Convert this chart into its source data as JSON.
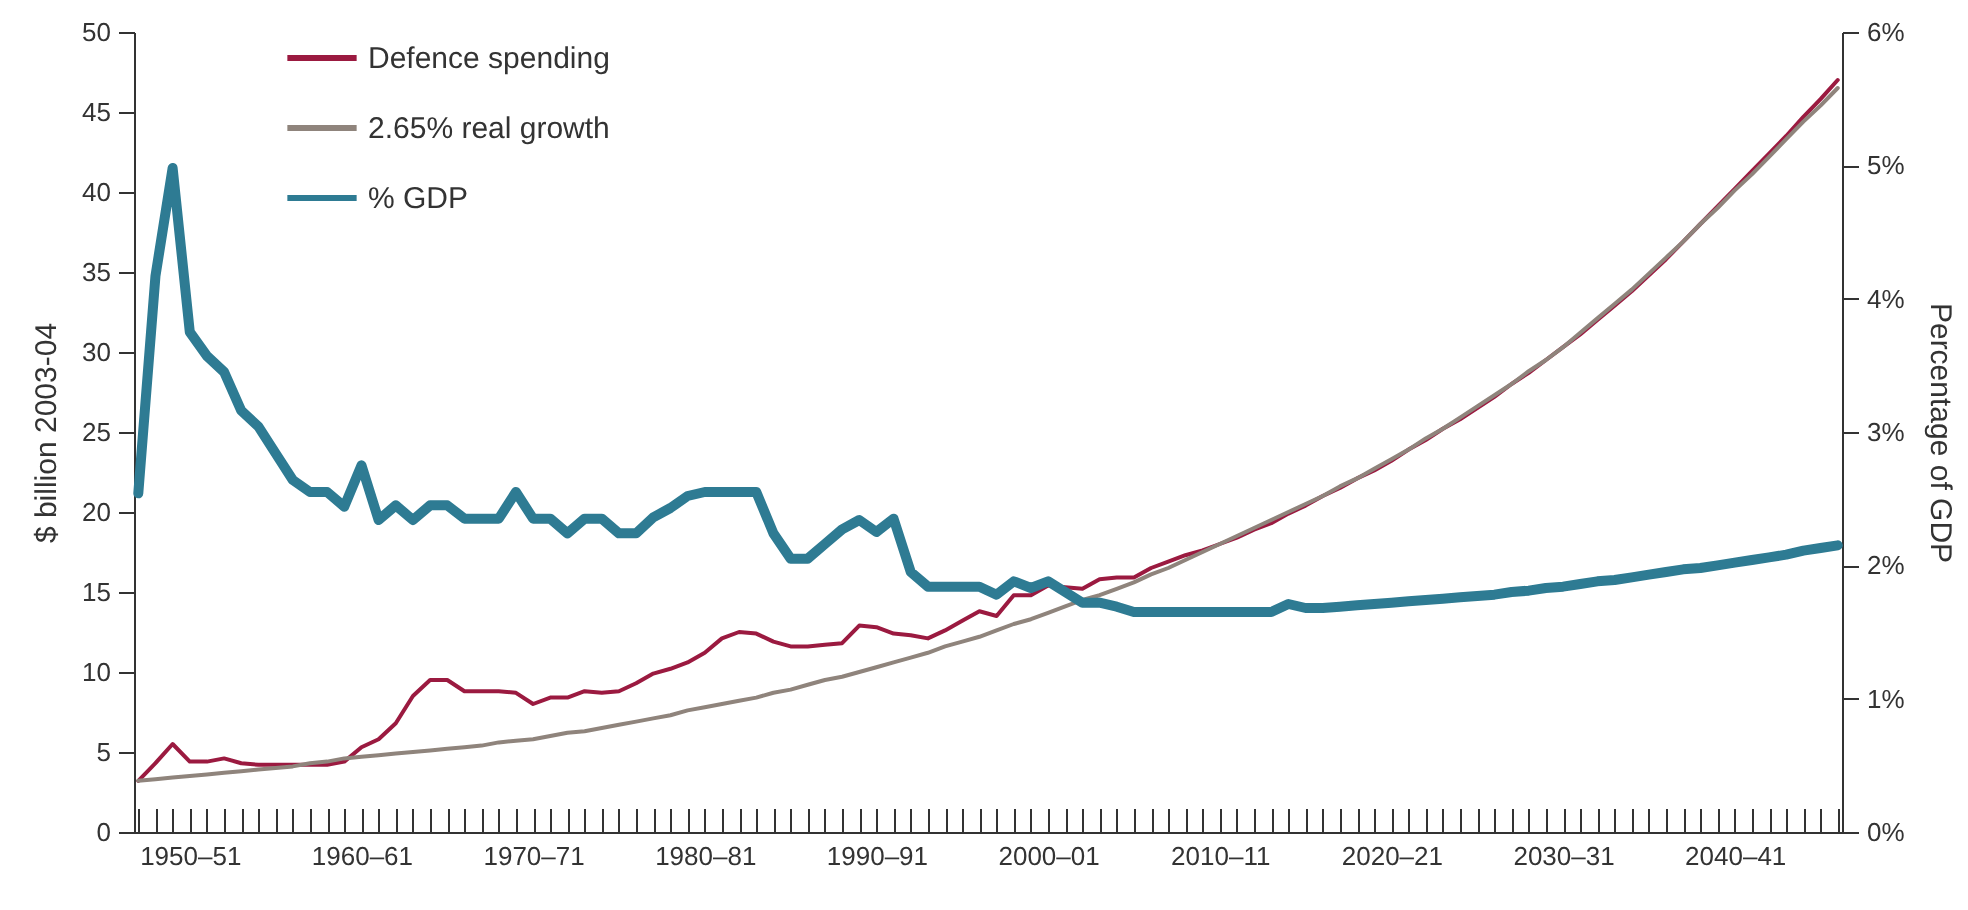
{
  "chart_data": {
    "type": "line",
    "ylabel": "$ billion 2003-04",
    "y2label": "Percentage of GDP",
    "ylim": [
      0,
      50
    ],
    "yticks": [
      0,
      5,
      10,
      15,
      20,
      25,
      30,
      35,
      40,
      45,
      50
    ],
    "y2lim": [
      0,
      6
    ],
    "y2ticks": [
      {
        "value": 0,
        "label": "0%"
      },
      {
        "value": 1,
        "label": "1%"
      },
      {
        "value": 2,
        "label": "2%"
      },
      {
        "value": 3,
        "label": "3%"
      },
      {
        "value": 4,
        "label": "4%"
      },
      {
        "value": 5,
        "label": "5%"
      },
      {
        "value": 6,
        "label": "6%"
      }
    ],
    "categories": [
      null,
      null,
      null,
      "1950–51",
      null,
      null,
      null,
      null,
      null,
      null,
      null,
      null,
      null,
      "1960–61",
      null,
      null,
      null,
      null,
      null,
      null,
      null,
      null,
      null,
      "1970–71",
      null,
      null,
      null,
      null,
      null,
      null,
      null,
      null,
      null,
      "1980–81",
      null,
      null,
      null,
      null,
      null,
      null,
      null,
      null,
      null,
      "1990–91",
      null,
      null,
      null,
      null,
      null,
      null,
      null,
      null,
      null,
      "2000–01",
      null,
      null,
      null,
      null,
      null,
      null,
      null,
      null,
      null,
      "2010–11",
      null,
      null,
      null,
      null,
      null,
      null,
      null,
      null,
      null,
      "2020–21",
      null,
      null,
      null,
      null,
      null,
      null,
      null,
      null,
      null,
      "2030–31",
      null,
      null,
      null,
      null,
      null,
      null,
      null,
      null,
      null,
      "2040–41",
      null,
      null,
      null,
      null,
      null,
      null
    ],
    "grid": false,
    "legend": "top left",
    "marker": "none",
    "series": [
      {
        "name": "Defence spending",
        "color": "#9b1a40",
        "values": [
          3.2,
          4.3,
          5.5,
          4.4,
          4.4,
          4.6,
          4.3,
          4.2,
          4.2,
          4.2,
          4.2,
          4.2,
          4.4,
          5.3,
          5.8,
          6.8,
          8.5,
          9.5,
          9.5,
          8.8,
          8.8,
          8.8,
          8.7,
          8.0,
          8.4,
          8.4,
          8.8,
          8.7,
          8.8,
          9.3,
          9.9,
          10.2,
          10.6,
          11.2,
          12.1,
          12.5,
          12.4,
          11.9,
          11.6,
          11.6,
          11.7,
          11.8,
          12.9,
          12.8,
          12.4,
          12.3,
          12.1,
          12.6,
          13.2,
          13.8,
          13.5,
          14.8,
          14.8,
          15.4,
          15.3,
          15.2,
          15.8,
          15.9,
          15.9,
          16.5,
          16.9,
          17.3,
          17.6,
          18.0,
          18.4,
          18.9,
          19.3,
          19.9,
          20.4,
          21.0,
          21.5,
          22.1,
          22.6,
          23.2,
          23.9,
          24.5,
          25.2,
          25.8,
          26.5,
          27.2,
          28.0,
          28.7,
          29.5,
          30.3,
          31.1,
          32.0,
          32.9,
          33.8,
          34.8,
          35.8,
          36.9,
          38.0,
          39.1,
          40.2,
          41.3,
          42.4,
          43.5,
          44.7,
          45.8,
          47.0
        ]
      },
      {
        "name": "2.65% real growth",
        "color": "#8f847c",
        "values": [
          3.2,
          3.3,
          3.4,
          3.5,
          3.6,
          3.7,
          3.8,
          3.9,
          4.0,
          4.1,
          4.3,
          4.4,
          4.6,
          4.7,
          4.8,
          4.9,
          5.0,
          5.1,
          5.2,
          5.3,
          5.4,
          5.6,
          5.7,
          5.8,
          6.0,
          6.2,
          6.3,
          6.5,
          6.7,
          6.9,
          7.1,
          7.3,
          7.6,
          7.8,
          8.0,
          8.2,
          8.4,
          8.7,
          8.9,
          9.2,
          9.5,
          9.7,
          10.0,
          10.3,
          10.6,
          10.9,
          11.2,
          11.6,
          11.9,
          12.2,
          12.6,
          13.0,
          13.3,
          13.7,
          14.1,
          14.5,
          14.8,
          15.2,
          15.6,
          16.1,
          16.5,
          17.0,
          17.5,
          18.0,
          18.5,
          19.0,
          19.5,
          20.0,
          20.5,
          21.0,
          21.6,
          22.1,
          22.7,
          23.3,
          23.9,
          24.6,
          25.2,
          25.9,
          26.6,
          27.3,
          28.0,
          28.8,
          29.5,
          30.3,
          31.2,
          32.1,
          33.0,
          33.9,
          34.9,
          35.9,
          36.9,
          38.0,
          39.0,
          40.1,
          41.1,
          42.2,
          43.3,
          44.4,
          45.4,
          46.5
        ]
      },
      {
        "name": "% GDP",
        "color": "#2e7b93",
        "axis": "y2",
        "values": [
          2.54,
          4.17,
          4.98,
          3.75,
          3.57,
          3.45,
          3.16,
          3.04,
          2.84,
          2.64,
          2.55,
          2.55,
          2.44,
          2.75,
          2.34,
          2.45,
          2.34,
          2.45,
          2.45,
          2.35,
          2.35,
          2.35,
          2.55,
          2.35,
          2.35,
          2.24,
          2.35,
          2.35,
          2.24,
          2.24,
          2.36,
          2.43,
          2.52,
          2.55,
          2.55,
          2.55,
          2.55,
          2.24,
          2.05,
          2.05,
          2.16,
          2.27,
          2.34,
          2.25,
          2.35,
          1.95,
          1.84,
          1.84,
          1.84,
          1.84,
          1.78,
          1.88,
          1.83,
          1.88,
          1.8,
          1.72,
          1.72,
          1.69,
          1.65,
          1.65,
          1.65,
          1.65,
          1.65,
          1.65,
          1.65,
          1.65,
          1.65,
          1.71,
          1.68,
          1.68,
          1.69,
          1.7,
          1.71,
          1.72,
          1.73,
          1.74,
          1.75,
          1.76,
          1.77,
          1.78,
          1.8,
          1.81,
          1.83,
          1.84,
          1.86,
          1.88,
          1.89,
          1.91,
          1.93,
          1.95,
          1.97,
          1.98,
          2.0,
          2.02,
          2.04,
          2.06,
          2.08,
          2.11,
          2.13,
          2.15
        ]
      }
    ]
  }
}
